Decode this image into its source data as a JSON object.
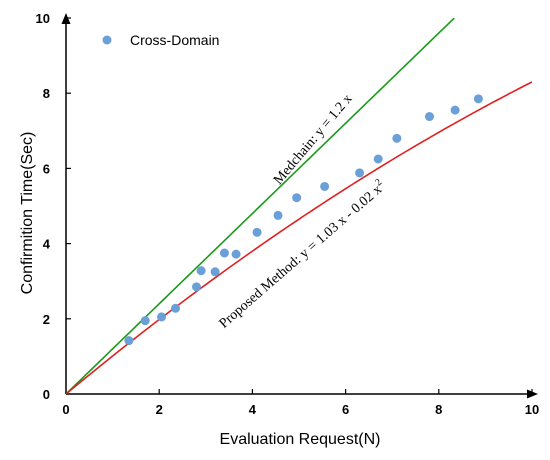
{
  "chart_data": {
    "type": "scatter",
    "title": "",
    "xlabel": "Evaluation Request(N)",
    "ylabel": "Confirmition Time(Sec)",
    "xlim": [
      0,
      10
    ],
    "ylim": [
      0,
      10
    ],
    "x_ticks": [
      "0",
      "2",
      "4",
      "6",
      "8",
      "10"
    ],
    "y_ticks": [
      "0",
      "2",
      "4",
      "6",
      "8",
      "10"
    ],
    "grid": false,
    "legend_position": "top-left",
    "series": [
      {
        "name": "Cross-Domain",
        "kind": "scatter",
        "color": "#6a9fd8",
        "x": [
          1.35,
          1.7,
          2.05,
          2.35,
          2.8,
          2.9,
          3.2,
          3.4,
          3.65,
          4.1,
          4.55,
          4.95,
          5.55,
          6.3,
          6.7,
          7.1,
          7.8,
          8.35,
          8.85
        ],
        "y": [
          1.42,
          1.95,
          2.05,
          2.28,
          2.85,
          3.28,
          3.25,
          3.75,
          3.72,
          4.3,
          4.75,
          5.22,
          5.52,
          5.88,
          6.25,
          6.8,
          7.38,
          7.55,
          7.85
        ]
      },
      {
        "name": "Medchain",
        "kind": "line",
        "color": "#1a9a1a",
        "equation": "y = 1.2 x",
        "coefficients": [
          0,
          1.2,
          0
        ],
        "x_range": [
          0,
          8.333
        ]
      },
      {
        "name": "Proposed Method",
        "kind": "line",
        "color": "#e02020",
        "equation": "y = 1.03 x - 0.02 x",
        "equation_superscript": "2",
        "coefficients": [
          0,
          1.03,
          -0.02
        ],
        "x_range": [
          0,
          10
        ]
      }
    ]
  }
}
